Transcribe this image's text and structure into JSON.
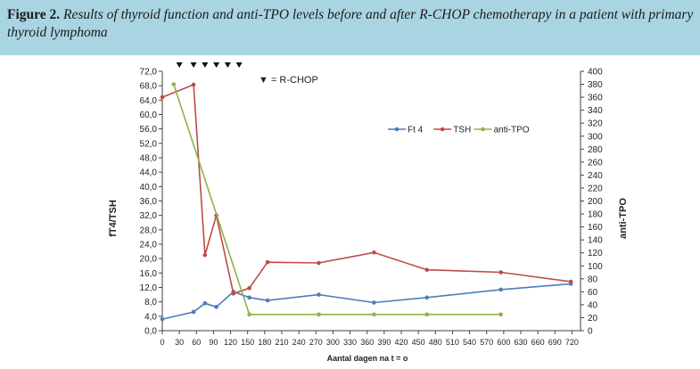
{
  "caption": {
    "figure_label": "Figure 2.",
    "text": "Results of thyroid function and anti-TPO levels before and after R-CHOP chemotherapy in a patient with primary thyroid lymphoma"
  },
  "chart_data": {
    "type": "line",
    "xlabel": "Aantal dagen na t = o",
    "ylabel_left": "fT4/TSH",
    "ylabel_right": "anti-TPO",
    "x_ticks": [
      "0",
      "30",
      "60",
      "90",
      "120",
      "150",
      "180",
      "210",
      "240",
      "270",
      "300",
      "330",
      "360",
      "390",
      "420",
      "450",
      "480",
      "510",
      "540",
      "570",
      "600",
      "630",
      "660",
      "690",
      "720"
    ],
    "x_range": [
      0,
      735
    ],
    "y_left_ticks": [
      "0,0",
      "4,0",
      "8,0",
      "12,0",
      "16,0",
      "20,0",
      "24,0",
      "28,0",
      "32,0",
      "36,0",
      "40,0",
      "44,0",
      "48,0",
      "52,0",
      "56,0",
      "60,0",
      "64,0",
      "68,0",
      "72,0"
    ],
    "y_left_range": [
      0,
      72
    ],
    "y_right_ticks": [
      "0",
      "20",
      "40",
      "60",
      "80",
      "100",
      "120",
      "140",
      "160",
      "180",
      "200",
      "220",
      "240",
      "260",
      "280",
      "300",
      "320",
      "340",
      "360",
      "380",
      "400"
    ],
    "y_right_range": [
      0,
      400
    ],
    "series": [
      {
        "name": "Ft 4",
        "axis": "left",
        "color": "#4a7ebb",
        "points": [
          [
            0,
            3.2
          ],
          [
            55,
            5.2
          ],
          [
            75,
            7.6
          ],
          [
            95,
            6.6
          ],
          [
            125,
            10.8
          ],
          [
            153,
            9.2
          ],
          [
            185,
            8.4
          ],
          [
            275,
            10.0
          ],
          [
            372,
            7.8
          ],
          [
            465,
            9.2
          ],
          [
            595,
            11.4
          ],
          [
            718,
            13.0
          ]
        ]
      },
      {
        "name": "TSH",
        "axis": "left",
        "color": "#be4b48",
        "points": [
          [
            0,
            64.8
          ],
          [
            55,
            68.3
          ],
          [
            75,
            21.0
          ],
          [
            95,
            32.0
          ],
          [
            125,
            10.3
          ],
          [
            153,
            11.8
          ],
          [
            185,
            19.0
          ],
          [
            275,
            18.8
          ],
          [
            372,
            21.7
          ],
          [
            465,
            16.9
          ],
          [
            595,
            16.2
          ],
          [
            718,
            13.6
          ]
        ]
      },
      {
        "name": "anti-TPO",
        "axis": "right",
        "color": "#8db34a",
        "points": [
          [
            20,
            380
          ],
          [
            153,
            25
          ],
          [
            275,
            25
          ],
          [
            372,
            25
          ],
          [
            465,
            25
          ],
          [
            595,
            25
          ]
        ]
      }
    ],
    "rchop_marker_days": [
      30,
      55,
      75,
      95,
      115,
      135
    ],
    "annotation": "▼ = R-CHOP",
    "legend_position": "top-right"
  }
}
